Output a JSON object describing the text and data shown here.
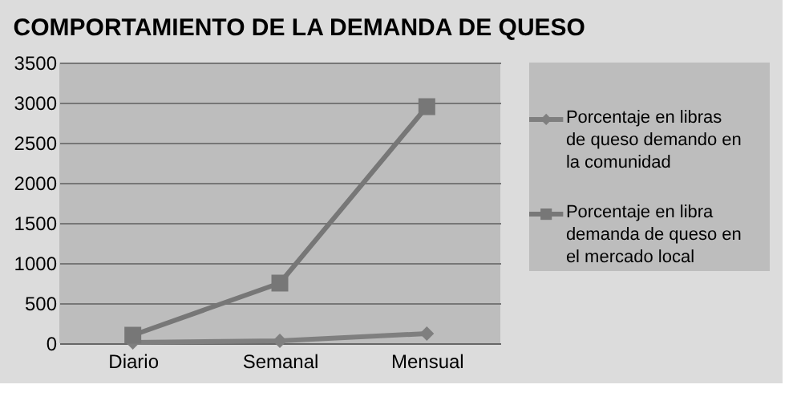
{
  "chart_data": {
    "type": "line",
    "title": "COMPORTAMIENTO DE LA DEMANDA DE QUESO",
    "categories": [
      "Diario",
      "Semanal",
      "Mensual"
    ],
    "series": [
      {
        "name": "Porcentaje en libras de queso demando en la comunidad",
        "color": "#7f7f7f",
        "marker": "diamond",
        "values": [
          10,
          30,
          120
        ]
      },
      {
        "name": "Porcentaje en libra demanda de queso en el mercado local",
        "color": "#777777",
        "marker": "square",
        "values": [
          100,
          750,
          2950
        ]
      }
    ],
    "ylim": [
      0,
      3500
    ],
    "yticks": [
      0,
      500,
      1000,
      1500,
      2000,
      2500,
      3000,
      3500
    ],
    "grid": "y",
    "legend": "right",
    "line_style": "solid"
  }
}
